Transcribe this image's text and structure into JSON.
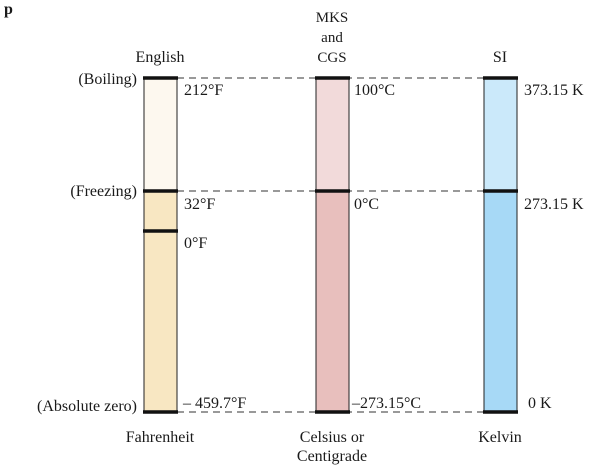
{
  "header_text": "p",
  "systems": {
    "english": {
      "name": "English",
      "unit_name": "Fahrenheit",
      "color": "#f8e7c2",
      "top_color": "#fdf8ef"
    },
    "mks_cgs": {
      "name_lines": [
        "MKS",
        "and",
        "CGS"
      ],
      "unit_name_lines": [
        "Celsius or",
        "Centigrade"
      ],
      "color": "#e8bfbd",
      "top_color": "#f2dada"
    },
    "si": {
      "name": "SI",
      "unit_name": "Kelvin",
      "color": "#a7d9f6",
      "top_color": "#cbe9fa"
    }
  },
  "levels": {
    "boiling": {
      "label": "(Boiling)",
      "fahrenheit": "212°F",
      "celsius": "100°C",
      "kelvin": "373.15 K"
    },
    "freezing": {
      "label": "(Freezing)",
      "fahrenheit": "32°F",
      "celsius": "0°C",
      "kelvin": "273.15 K"
    },
    "zero_f": {
      "fahrenheit": "0°F"
    },
    "absolute_zero": {
      "label": "(Absolute zero)",
      "fahrenheit": "– 459.7°F",
      "celsius": "–273.15°C",
      "kelvin": "0 K"
    }
  }
}
